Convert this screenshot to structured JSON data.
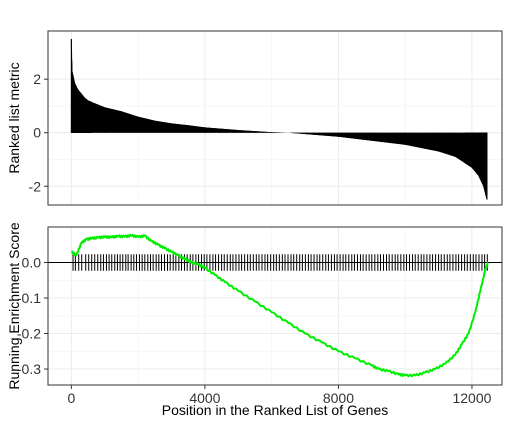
{
  "chart_data": [
    {
      "type": "bar",
      "ylabel": "Ranked list metric",
      "xlim": [
        -700,
        12900
      ],
      "ylim": [
        -2.7,
        3.8
      ],
      "yticks": [
        -2,
        0,
        2
      ],
      "grid": true,
      "metric_profile": [
        [
          0,
          3.5
        ],
        [
          20,
          2.3
        ],
        [
          100,
          1.85
        ],
        [
          200,
          1.6
        ],
        [
          300,
          1.45
        ],
        [
          400,
          1.3
        ],
        [
          500,
          1.2
        ],
        [
          700,
          1.1
        ],
        [
          1000,
          0.95
        ],
        [
          1500,
          0.8
        ],
        [
          2000,
          0.6
        ],
        [
          2500,
          0.45
        ],
        [
          3000,
          0.35
        ],
        [
          3500,
          0.28
        ],
        [
          4000,
          0.2
        ],
        [
          5000,
          0.1
        ],
        [
          6000,
          0.02
        ],
        [
          6500,
          0.0
        ],
        [
          7000,
          -0.05
        ],
        [
          8000,
          -0.15
        ],
        [
          9000,
          -0.3
        ],
        [
          10000,
          -0.45
        ],
        [
          11000,
          -0.7
        ],
        [
          11500,
          -0.9
        ],
        [
          12000,
          -1.3
        ],
        [
          12200,
          -1.6
        ],
        [
          12350,
          -2.0
        ],
        [
          12450,
          -2.5
        ]
      ]
    },
    {
      "type": "line",
      "xlabel": "Position in the Ranked List of Genes",
      "ylabel": "Running Enrichment Score",
      "xlim": [
        -700,
        12900
      ],
      "ylim": [
        -0.345,
        0.1
      ],
      "xticks": [
        0,
        4000,
        8000,
        12000
      ],
      "xtick_labels": [
        "0",
        "4000",
        "8000",
        "12000"
      ],
      "yticks": [
        0.0,
        -0.1,
        -0.2,
        -0.3
      ],
      "ytick_labels": [
        "0.0",
        "-0.1",
        "-0.2",
        "-0.3"
      ],
      "grid": true,
      "hline": 0,
      "series": [
        {
          "color": "#00ee00",
          "x": [
            0,
            150,
            300,
            450,
            600,
            800,
            1000,
            1200,
            1400,
            1600,
            1800,
            2000,
            2200,
            2400,
            2600,
            2800,
            3000,
            3200,
            3400,
            3600,
            3800,
            4000,
            4300,
            4600,
            5000,
            5500,
            6000,
            6500,
            7000,
            7500,
            8000,
            8500,
            9000,
            9200,
            9500,
            9800,
            10000,
            10300,
            10600,
            10900,
            11200,
            11500,
            11700,
            11900,
            12100,
            12250,
            12400,
            12480
          ],
          "y": [
            0.03,
            0.02,
            0.055,
            0.065,
            0.068,
            0.07,
            0.072,
            0.071,
            0.074,
            0.073,
            0.076,
            0.072,
            0.075,
            0.06,
            0.05,
            0.04,
            0.03,
            0.02,
            0.01,
            0.0,
            -0.005,
            -0.015,
            -0.035,
            -0.055,
            -0.08,
            -0.11,
            -0.14,
            -0.17,
            -0.2,
            -0.225,
            -0.25,
            -0.27,
            -0.29,
            -0.3,
            -0.306,
            -0.315,
            -0.318,
            -0.318,
            -0.31,
            -0.3,
            -0.285,
            -0.26,
            -0.23,
            -0.2,
            -0.14,
            -0.08,
            -0.02,
            0.0
          ]
        }
      ],
      "hits": [
        50,
        120,
        220,
        310,
        430,
        520,
        610,
        700,
        790,
        880,
        960,
        1050,
        1130,
        1210,
        1300,
        1380,
        1460,
        1540,
        1630,
        1700,
        1790,
        1870,
        1950,
        2040,
        2120,
        2200,
        2290,
        2370,
        2450,
        2540,
        2620,
        2700,
        2790,
        2880,
        2960,
        3050,
        3130,
        3220,
        3300,
        3390,
        3470,
        3560,
        3640,
        3730,
        3810,
        3900,
        3980,
        4060,
        4150,
        4240,
        4320,
        4410,
        4500,
        4580,
        4670,
        4760,
        4840,
        4930,
        5020,
        5100,
        5190,
        5280,
        5360,
        5450,
        5540,
        5620,
        5710,
        5800,
        5880,
        5970,
        6060,
        6140,
        6230,
        6320,
        6400,
        6490,
        6580,
        6660,
        6750,
        6840,
        6920,
        7010,
        7100,
        7180,
        7270,
        7360,
        7440,
        7530,
        7620,
        7700,
        7790,
        7880,
        7960,
        8050,
        8140,
        8220,
        8310,
        8400,
        8480,
        8570,
        8660,
        8740,
        8830,
        8920,
        9000,
        9090,
        9180,
        9260,
        9350,
        9440,
        9520,
        9610,
        9700,
        9780,
        9870,
        9960,
        10040,
        10130,
        10220,
        10300,
        10390,
        10480,
        10560,
        10650,
        10740,
        10820,
        10910,
        11000,
        11080,
        11170,
        11260,
        11340,
        11430,
        11520,
        11600,
        11690,
        11780,
        11860,
        11950,
        12040,
        12120,
        12210,
        12300,
        12380,
        12460
      ]
    }
  ]
}
